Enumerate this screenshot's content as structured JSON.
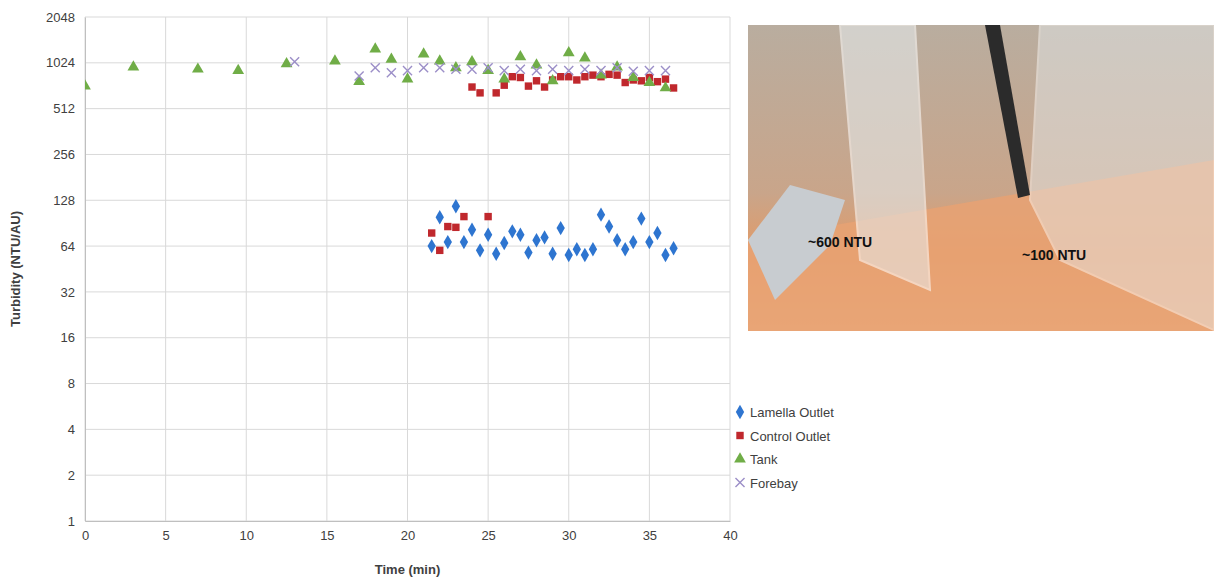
{
  "chart_data": {
    "type": "scatter",
    "x_label": "Time (min)",
    "y_label": "Turbidity (NTU/AU)",
    "log": "y",
    "grid": true,
    "legend": "right",
    "xlim": [
      0,
      40
    ],
    "xticks": [
      0,
      5,
      10,
      15,
      20,
      25,
      30,
      35,
      40
    ],
    "ylim": [
      1,
      2048
    ],
    "yticks": [
      1,
      2,
      4,
      8,
      16,
      32,
      64,
      128,
      256,
      512,
      1024,
      2048
    ],
    "series": [
      {
        "name": "Lamella Outlet",
        "color": "#2e75d0",
        "marker": "diamond",
        "x": [
          21.5,
          22,
          22.5,
          23,
          23.5,
          24,
          24.5,
          25,
          25.5,
          26,
          26.5,
          27,
          27.5,
          28,
          28.5,
          29,
          29.5,
          30,
          30.5,
          31,
          31.5,
          32,
          32.5,
          33,
          33.5,
          34,
          34.5,
          35,
          35.5,
          36,
          36.5
        ],
        "values": [
          64,
          99,
          68,
          117,
          68,
          82,
          60,
          76,
          57,
          67,
          80,
          76,
          58,
          70,
          73,
          57,
          84,
          56,
          61,
          56,
          61,
          103,
          86,
          70,
          61,
          68,
          97,
          68,
          78,
          56,
          62
        ]
      },
      {
        "name": "Control Outlet",
        "color": "#c0282d",
        "marker": "square",
        "x": [
          21.5,
          22,
          22.5,
          23,
          23.5,
          25,
          24,
          24.5,
          25.5,
          26,
          26.5,
          27,
          27.5,
          28,
          28.5,
          29,
          29.5,
          30,
          30.5,
          31,
          31.5,
          32,
          32.5,
          33,
          33.5,
          34,
          34.5,
          35,
          35.5,
          36,
          36.5
        ],
        "values": [
          78,
          60,
          86,
          85,
          100,
          100,
          710,
          650,
          650,
          730,
          830,
          820,
          720,
          780,
          710,
          790,
          830,
          830,
          790,
          830,
          850,
          830,
          860,
          850,
          760,
          790,
          780,
          820,
          770,
          800,
          700
        ]
      },
      {
        "name": "Tank",
        "color": "#70ad47",
        "marker": "triangle",
        "x": [
          0,
          3,
          7,
          9.5,
          12.5,
          15.5,
          17,
          18,
          19,
          20,
          21,
          22,
          23,
          24,
          25,
          26,
          27,
          28,
          29,
          30,
          31,
          32,
          33,
          34,
          35,
          36
        ],
        "values": [
          720,
          960,
          930,
          910,
          1010,
          1050,
          770,
          1260,
          1080,
          800,
          1170,
          1050,
          950,
          1040,
          910,
          800,
          1120,
          990,
          780,
          1190,
          1100,
          850,
          960,
          820,
          760,
          700
        ]
      },
      {
        "name": "Forebay",
        "color": "#9c8fc8",
        "marker": "x",
        "x": [
          13,
          17,
          18,
          19,
          20,
          21,
          22,
          23,
          24,
          25,
          26,
          27,
          28,
          29,
          30,
          31,
          32,
          33,
          34,
          35,
          36
        ],
        "values": [
          1040,
          840,
          950,
          880,
          910,
          950,
          950,
          930,
          930,
          950,
          910,
          930,
          910,
          930,
          910,
          930,
          910,
          950,
          900,
          910,
          910
        ]
      }
    ]
  },
  "photo": {
    "labels": [
      "~600 NTU",
      "~100 NTU"
    ]
  }
}
